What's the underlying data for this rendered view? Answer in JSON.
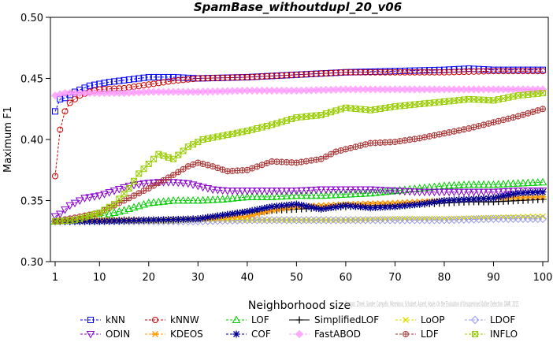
{
  "chart_data": {
    "type": "line",
    "title": "SpamBase_withoutdupl_20_v06",
    "xlabel": "Neighborhood size",
    "ylabel": "Maximum F1",
    "xlim": [
      1,
      100
    ],
    "ylim": [
      0.3,
      0.5
    ],
    "xticks": [
      1,
      10,
      20,
      30,
      40,
      50,
      60,
      70,
      80,
      90,
      100
    ],
    "yticks": [
      0.3,
      0.35,
      0.4,
      0.45,
      0.5
    ],
    "xtick_labels": [
      "1",
      "10",
      "20",
      "30",
      "40",
      "50",
      "60",
      "70",
      "80",
      "90",
      "100"
    ],
    "ytick_labels": [
      "0.30",
      "0.35",
      "0.40",
      "0.45",
      "0.50"
    ],
    "grid": false,
    "legend_position": "bottom",
    "watermark": "Campos, Zimek, Sander, Campello, Micenkova, Schubert, Assent, Houle: On the Evaluation of Unsupervised Outlier Detection. DAMI, 2015.",
    "series": [
      {
        "name": "kNN",
        "color": "#0000ff",
        "marker": "square",
        "dashed": true,
        "x": [
          1,
          2,
          3,
          5,
          8,
          12,
          16,
          20,
          25,
          30,
          40,
          50,
          60,
          70,
          80,
          85,
          90,
          95,
          100
        ],
        "y": [
          0.423,
          0.433,
          0.434,
          0.439,
          0.444,
          0.447,
          0.449,
          0.451,
          0.451,
          0.45,
          0.451,
          0.453,
          0.455,
          0.456,
          0.457,
          0.458,
          0.457,
          0.457,
          0.457
        ]
      },
      {
        "name": "kNNW",
        "color": "#cc0000",
        "marker": "circle",
        "dashed": true,
        "x": [
          1,
          2,
          3,
          4,
          6,
          8,
          10,
          15,
          20,
          25,
          30,
          40,
          50,
          60,
          70,
          80,
          90,
          100
        ],
        "y": [
          0.37,
          0.408,
          0.423,
          0.43,
          0.436,
          0.439,
          0.441,
          0.442,
          0.445,
          0.448,
          0.45,
          0.451,
          0.453,
          0.455,
          0.455,
          0.455,
          0.456,
          0.456
        ]
      },
      {
        "name": "LOF",
        "color": "#00cc00",
        "marker": "triangle-up",
        "dashed": true,
        "x": [
          1,
          5,
          10,
          15,
          20,
          25,
          30,
          35,
          40,
          45,
          50,
          55,
          60,
          65,
          70,
          75,
          80,
          85,
          90,
          95,
          100
        ],
        "y": [
          0.333,
          0.334,
          0.337,
          0.342,
          0.348,
          0.35,
          0.35,
          0.351,
          0.353,
          0.353,
          0.354,
          0.354,
          0.355,
          0.356,
          0.358,
          0.36,
          0.362,
          0.363,
          0.363,
          0.364,
          0.365
        ]
      },
      {
        "name": "SimplifiedLOF",
        "color": "#000000",
        "marker": "plus",
        "dashed": false,
        "x": [
          1,
          5,
          10,
          15,
          20,
          25,
          30,
          35,
          40,
          45,
          50,
          55,
          60,
          65,
          70,
          75,
          80,
          85,
          90,
          95,
          100
        ],
        "y": [
          0.333,
          0.333,
          0.333,
          0.334,
          0.334,
          0.334,
          0.335,
          0.338,
          0.34,
          0.342,
          0.343,
          0.344,
          0.345,
          0.346,
          0.346,
          0.347,
          0.348,
          0.349,
          0.349,
          0.35,
          0.351
        ]
      },
      {
        "name": "LoOP",
        "color": "#dddd00",
        "marker": "cross",
        "dashed": true,
        "x": [
          1,
          10,
          20,
          30,
          40,
          50,
          60,
          70,
          80,
          90,
          100
        ],
        "y": [
          0.333,
          0.333,
          0.333,
          0.334,
          0.334,
          0.334,
          0.334,
          0.335,
          0.335,
          0.336,
          0.337
        ]
      },
      {
        "name": "LDOF",
        "color": "#9999ee",
        "marker": "diamond",
        "dashed": true,
        "x": [
          1,
          10,
          20,
          30,
          40,
          50,
          60,
          70,
          80,
          90,
          100
        ],
        "y": [
          0.333,
          0.333,
          0.333,
          0.333,
          0.334,
          0.334,
          0.334,
          0.334,
          0.334,
          0.335,
          0.335
        ]
      },
      {
        "name": "ODIN",
        "color": "#8800cc",
        "marker": "triangle-down",
        "dashed": true,
        "x": [
          1,
          2,
          4,
          7,
          10,
          13,
          16,
          19,
          22,
          25,
          28,
          30,
          33,
          36,
          40,
          45,
          50,
          55,
          60,
          65,
          70,
          75,
          80,
          85,
          90,
          95,
          100
        ],
        "y": [
          0.337,
          0.339,
          0.346,
          0.352,
          0.354,
          0.358,
          0.362,
          0.364,
          0.365,
          0.365,
          0.364,
          0.362,
          0.359,
          0.358,
          0.358,
          0.358,
          0.358,
          0.359,
          0.359,
          0.359,
          0.358,
          0.357,
          0.357,
          0.357,
          0.357,
          0.358,
          0.358
        ]
      },
      {
        "name": "KDEOS",
        "color": "#ff9900",
        "marker": "asterisk",
        "dashed": true,
        "x": [
          1,
          10,
          20,
          30,
          40,
          45,
          50,
          55,
          60,
          70,
          80,
          90,
          100
        ],
        "y": [
          0.333,
          0.334,
          0.334,
          0.335,
          0.337,
          0.342,
          0.345,
          0.346,
          0.347,
          0.348,
          0.35,
          0.352,
          0.353
        ]
      },
      {
        "name": "COF",
        "color": "#000099",
        "marker": "star",
        "dashed": true,
        "x": [
          1,
          10,
          20,
          30,
          35,
          40,
          45,
          50,
          55,
          60,
          65,
          70,
          75,
          80,
          85,
          90,
          95,
          100
        ],
        "y": [
          0.333,
          0.333,
          0.334,
          0.335,
          0.338,
          0.341,
          0.345,
          0.347,
          0.343,
          0.346,
          0.344,
          0.345,
          0.347,
          0.35,
          0.351,
          0.352,
          0.356,
          0.357
        ]
      },
      {
        "name": "FastABOD",
        "color": "#ff99ff",
        "marker": "diamond-filled",
        "dashed": true,
        "x": [
          1,
          3,
          6,
          10,
          15,
          20,
          30,
          40,
          50,
          60,
          70,
          80,
          90,
          100
        ],
        "y": [
          0.436,
          0.438,
          0.438,
          0.438,
          0.438,
          0.439,
          0.439,
          0.44,
          0.44,
          0.441,
          0.441,
          0.441,
          0.441,
          0.441
        ]
      },
      {
        "name": "LDF",
        "color": "#aa3333",
        "marker": "circle-plus",
        "dashed": true,
        "x": [
          1,
          5,
          10,
          15,
          20,
          25,
          28,
          30,
          33,
          36,
          40,
          45,
          50,
          55,
          58,
          60,
          65,
          70,
          75,
          80,
          85,
          90,
          95,
          100
        ],
        "y": [
          0.333,
          0.336,
          0.34,
          0.35,
          0.36,
          0.371,
          0.378,
          0.381,
          0.378,
          0.374,
          0.375,
          0.382,
          0.381,
          0.384,
          0.39,
          0.392,
          0.397,
          0.398,
          0.401,
          0.405,
          0.409,
          0.414,
          0.419,
          0.425
        ]
      },
      {
        "name": "INFLO",
        "color": "#99cc00",
        "marker": "square-cross",
        "dashed": true,
        "x": [
          1,
          5,
          10,
          13,
          16,
          18,
          20,
          22,
          25,
          28,
          31,
          35,
          40,
          45,
          50,
          55,
          60,
          65,
          70,
          75,
          80,
          85,
          90,
          95,
          100
        ],
        "y": [
          0.333,
          0.334,
          0.34,
          0.347,
          0.36,
          0.372,
          0.38,
          0.388,
          0.384,
          0.394,
          0.4,
          0.403,
          0.407,
          0.412,
          0.418,
          0.42,
          0.426,
          0.424,
          0.427,
          0.429,
          0.431,
          0.433,
          0.432,
          0.436,
          0.438
        ]
      }
    ],
    "legend_rows": [
      [
        "kNN",
        "kNNW",
        "LOF",
        "SimplifiedLOF",
        "LoOP",
        "LDOF"
      ],
      [
        "ODIN",
        "KDEOS",
        "COF",
        "FastABOD",
        "LDF",
        "INFLO"
      ]
    ]
  }
}
